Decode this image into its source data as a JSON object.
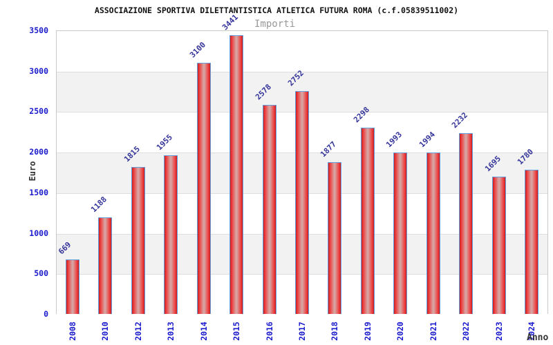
{
  "header": {
    "title": "ASSOCIAZIONE SPORTIVA DILETTANTISTICA ATLETICA FUTURA ROMA (c.f.05839511002)"
  },
  "chart_data": {
    "type": "bar",
    "title": "Importi",
    "xlabel": "Anno",
    "ylabel": "Euro",
    "categories": [
      "2008",
      "2010",
      "2012",
      "2013",
      "2014",
      "2015",
      "2016",
      "2017",
      "2018",
      "2019",
      "2020",
      "2021",
      "2022",
      "2023",
      "2024"
    ],
    "values": [
      669,
      1188,
      1815,
      1955,
      3100,
      3441,
      2578,
      2752,
      1877,
      2298,
      1993,
      1994,
      2232,
      1695,
      1780
    ],
    "ylim": [
      0,
      3500
    ],
    "yticks": [
      0,
      500,
      1000,
      1500,
      2000,
      2500,
      3000,
      3500
    ],
    "grid": "horizontal-bands-alternating",
    "legend_position": "top-center",
    "colors": {
      "bar_edge": "#c62020",
      "bar_mid": "#d7a2a0",
      "bar_border": "#62a0dd",
      "tick_label": "#1a1acd",
      "value_label": "#333399",
      "band_gray": "#f2f2f2",
      "band_white": "#ffffff",
      "grid_line": "#dddddd",
      "axis_border": "#c9c9c9",
      "title_text": "#111111",
      "legend_text": "#999999",
      "axis_title_text": "#333333"
    }
  }
}
